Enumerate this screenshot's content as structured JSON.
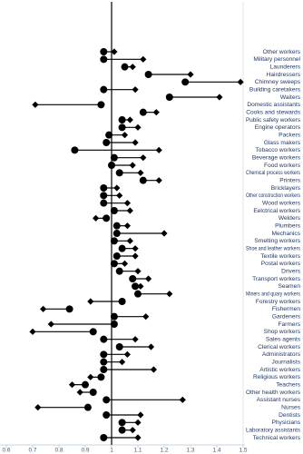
{
  "chart_data": {
    "type": "dot-pair",
    "categories": [
      "Other workers",
      "Military personnel",
      "Launderers",
      "Hairdressers",
      "Chimney sweeps",
      "Building caretakers",
      "Waiters",
      "Domestic assistants",
      "Cooks and stewards",
      "Public safety workers",
      "Engine operators",
      "Packers",
      "Glass makers",
      "Tobacco workers",
      "Beverage workers",
      "Food workers",
      "Chemical process workers",
      "Printers",
      "Bricklayers",
      "Other construction workers",
      "Wood workers",
      "Eelctrical workers",
      "Welders",
      "Plumbers",
      "Mechanics",
      "Smelting workers",
      "Shoe and leather workers",
      "Textile workers",
      "Postal workers",
      "Drivers",
      "Transport workers",
      "Seamen",
      "Miners and quary workers",
      "Forestry workers",
      "Fishermen",
      "Gardeners",
      "Farmers",
      "Shop workers",
      "Sales agents",
      "Clerical workers",
      "Administrators",
      "Journalists",
      "Artistic workers",
      "Religious workers",
      "Teachers",
      "Other health workers",
      "Assistant nurses",
      "Nurses",
      "Dentists",
      "Physicians",
      "Laboratory assistants",
      "Technical workers"
    ],
    "series": [
      {
        "marker": "circle",
        "color": "#000000",
        "values": [
          0.97,
          0.97,
          1.05,
          1.14,
          1.28,
          0.97,
          1.22,
          0.96,
          1.12,
          1.04,
          1.04,
          0.99,
          0.98,
          0.86,
          1.01,
          1.0,
          1.03,
          1.12,
          0.97,
          0.97,
          0.97,
          1.01,
          0.98,
          1.02,
          1.02,
          1.01,
          1.04,
          1.02,
          1.01,
          1.03,
          1.08,
          1.09,
          1.1,
          1.04,
          0.84,
          1.01,
          1.01,
          0.93,
          0.97,
          1.03,
          0.97,
          0.97,
          0.97,
          0.96,
          0.9,
          0.93,
          0.98,
          0.91,
          0.98,
          1.04,
          1.04,
          0.97
        ]
      },
      {
        "marker": "diamond",
        "color": "#000000",
        "values": [
          1.01,
          1.12,
          1.08,
          1.3,
          1.49,
          1.09,
          1.41,
          0.71,
          1.17,
          1.07,
          1.1,
          1.05,
          1.09,
          1.18,
          1.12,
          1.08,
          1.11,
          1.18,
          1.02,
          1.03,
          1.06,
          1.07,
          0.94,
          1.06,
          1.2,
          1.07,
          1.09,
          1.09,
          1.05,
          1.1,
          1.14,
          1.11,
          1.22,
          0.92,
          0.74,
          1.13,
          0.77,
          0.7,
          1.09,
          1.15,
          1.06,
          1.04,
          1.16,
          0.92,
          0.85,
          0.88,
          1.27,
          0.72,
          1.11,
          1.1,
          1.08,
          1.1
        ]
      }
    ],
    "xlim": [
      0.6,
      1.5
    ],
    "xticks": [
      0.6,
      0.7,
      0.8,
      0.9,
      1,
      1.1,
      1.2,
      1.3,
      1.4,
      1.5
    ],
    "reference_line": 1
  }
}
